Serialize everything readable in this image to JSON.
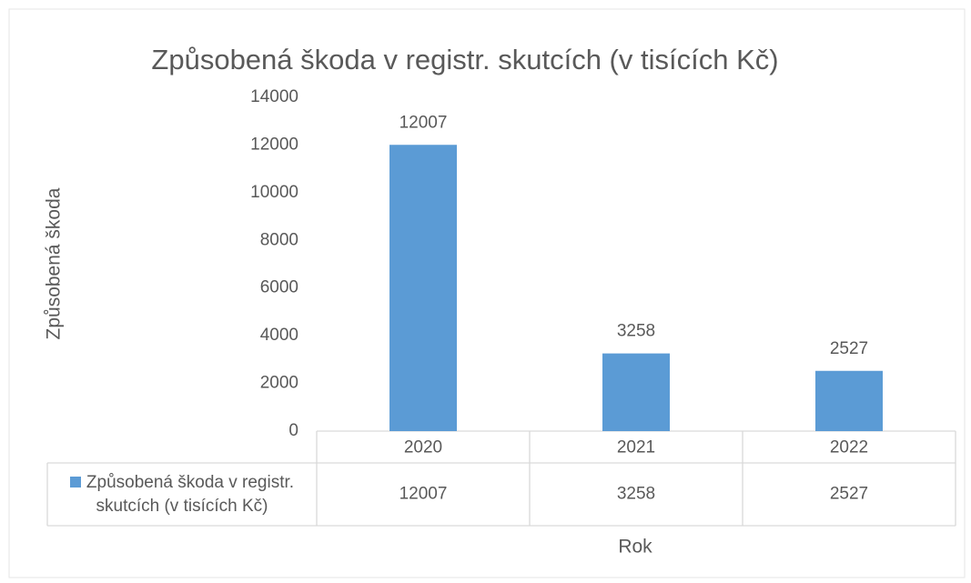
{
  "chart_data": {
    "type": "bar",
    "title": "Způsobená škoda v registr. skutcích (v tisících Kč)",
    "categories": [
      "2020",
      "2021",
      "2022"
    ],
    "series": [
      {
        "name": "Způsobená škoda v registr. skutcích (v tisících Kč)",
        "color": "#5b9bd5",
        "values": [
          12007,
          3258,
          2527
        ]
      }
    ],
    "ylim": [
      0,
      14000
    ],
    "yticks": [
      0,
      2000,
      4000,
      6000,
      8000,
      10000,
      12000,
      14000
    ],
    "x_label": "Rok",
    "y_label": "Způsobená škoda",
    "data_labels": true,
    "data_table": true,
    "grid": false
  }
}
